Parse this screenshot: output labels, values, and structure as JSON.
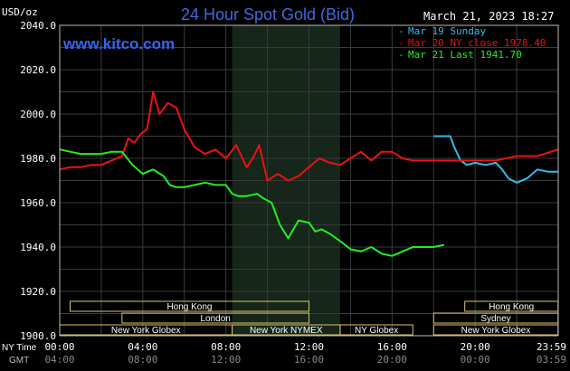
{
  "header": {
    "unit": "USD/oz",
    "title": "24 Hour Spot Gold (Bid)",
    "timestamp": "March 21, 2023 18:27",
    "site": "www.kitco.com"
  },
  "legend": [
    {
      "label": "Mar 19 Sunday",
      "color": "#33bbee"
    },
    {
      "label": "Mar 20 NY close 1978.40",
      "color": "#ee1111"
    },
    {
      "label": "Mar 21 Last 1941.70",
      "color": "#22ee22"
    }
  ],
  "time_axis": {
    "ny_label": "NY Time",
    "gmt_label": "GMT",
    "ny_ticks": [
      "00:00",
      "04:00",
      "08:00",
      "12:00",
      "16:00",
      "20:00",
      "23:59"
    ],
    "gmt_ticks": [
      "04:00",
      "08:00",
      "12:00",
      "16:00",
      "20:00",
      "00:00",
      "03:59"
    ]
  },
  "markets": {
    "row1": [
      {
        "label": "Hong Kong",
        "start": 0.5,
        "end": 12.0
      },
      {
        "label": "Hong Kong",
        "start": 19.5,
        "end": 23.99
      }
    ],
    "row2": [
      {
        "label": "London",
        "start": 3.0,
        "end": 12.0
      },
      {
        "label": "Sydney",
        "start": 18.0,
        "end": 23.99
      }
    ],
    "row3": [
      {
        "label": "New York Globex",
        "start": 0.0,
        "end": 8.3
      },
      {
        "label": "New York NYMEX",
        "start": 8.3,
        "end": 13.5
      },
      {
        "label": "NY Globex",
        "start": 13.5,
        "end": 17.0
      },
      {
        "label": "New York Globex",
        "start": 18.0,
        "end": 23.99
      }
    ]
  },
  "chart_data": {
    "type": "line",
    "ylabel": "USD/oz",
    "ylim": [
      1900,
      2040
    ],
    "yticks": [
      1900,
      1920,
      1940,
      1960,
      1980,
      2000,
      2020,
      2040
    ],
    "xlim": [
      0,
      24
    ],
    "grid": true,
    "highlight_band_hours": [
      8.3,
      13.5
    ],
    "series": [
      {
        "name": "Mar 19 Sunday",
        "color": "#33bbee",
        "x": [
          18.0,
          18.4,
          18.8,
          19.0,
          19.3,
          19.6,
          20.0,
          20.5,
          21.0,
          21.3,
          21.6,
          22.0,
          22.5,
          23.0,
          23.5,
          23.99
        ],
        "y": [
          1990,
          1990,
          1990,
          1985,
          1979,
          1977,
          1978,
          1977,
          1978,
          1975,
          1971,
          1969,
          1971,
          1975,
          1974,
          1974
        ]
      },
      {
        "name": "Mar 20 NY close 1978.40",
        "color": "#ee1111",
        "x": [
          0.0,
          0.5,
          1.0,
          1.5,
          2.0,
          2.5,
          3.0,
          3.3,
          3.6,
          3.9,
          4.2,
          4.5,
          4.8,
          5.2,
          5.6,
          6.0,
          6.5,
          7.0,
          7.5,
          8.0,
          8.5,
          9.0,
          9.3,
          9.6,
          10.0,
          10.5,
          11.0,
          11.5,
          12.0,
          12.5,
          13.0,
          13.5,
          14.0,
          14.5,
          15.0,
          15.5,
          16.0,
          16.5,
          17.0,
          17.5,
          18.0,
          19.0,
          20.0,
          21.0,
          22.0,
          23.0,
          23.99
        ],
        "y": [
          1975,
          1976,
          1976,
          1977,
          1977,
          1979,
          1981,
          1989,
          1987,
          1991,
          1993,
          2010,
          2000,
          2005,
          2003,
          1993,
          1985,
          1982,
          1984,
          1980,
          1986,
          1976,
          1980,
          1986,
          1970,
          1973,
          1970,
          1972,
          1976,
          1980,
          1978,
          1977,
          1980,
          1983,
          1979,
          1983,
          1983,
          1980,
          1979,
          1979,
          1979,
          1979,
          1979,
          1979,
          1981,
          1981,
          1984
        ]
      },
      {
        "name": "Mar 21 Last 1941.70",
        "color": "#22ee22",
        "x": [
          0.0,
          0.5,
          1.0,
          1.5,
          2.0,
          2.5,
          3.0,
          3.5,
          4.0,
          4.5,
          5.0,
          5.3,
          5.6,
          6.0,
          6.5,
          7.0,
          7.5,
          8.0,
          8.3,
          8.6,
          9.0,
          9.5,
          9.8,
          10.2,
          10.6,
          11.0,
          11.5,
          12.0,
          12.3,
          12.6,
          13.0,
          13.3,
          13.6,
          14.0,
          14.5,
          15.0,
          15.5,
          16.0,
          16.5,
          17.0,
          17.5,
          18.0,
          18.5
        ],
        "y": [
          1984,
          1983,
          1982,
          1982,
          1982,
          1983,
          1983,
          1977,
          1973,
          1975,
          1972,
          1968,
          1967,
          1967,
          1968,
          1969,
          1968,
          1968,
          1964,
          1963,
          1963,
          1964,
          1962,
          1960,
          1950,
          1944,
          1952,
          1951,
          1947,
          1948,
          1946,
          1944,
          1942,
          1939,
          1938,
          1940,
          1937,
          1936,
          1938,
          1940,
          1940,
          1940,
          1941
        ]
      }
    ]
  }
}
